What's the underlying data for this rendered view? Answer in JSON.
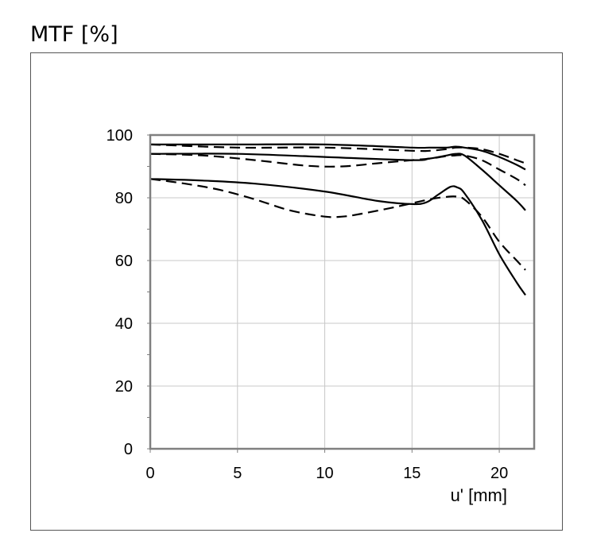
{
  "chart_data": {
    "type": "line",
    "title": "",
    "ylabel": "MTF [%]",
    "xlabel": "u' [mm]",
    "xlim": [
      0,
      22
    ],
    "ylim": [
      0,
      100
    ],
    "xticks": [
      0,
      5,
      10,
      15,
      20
    ],
    "yticks": [
      0,
      20,
      40,
      60,
      80,
      100
    ],
    "grid": true,
    "series": [
      {
        "style": "solid",
        "x": [
          0,
          5,
          10,
          15,
          16,
          17,
          17.5,
          18,
          19,
          20,
          21,
          21.5
        ],
        "y": [
          97,
          97,
          97,
          96,
          96,
          96,
          96.3,
          96,
          95,
          93,
          90.5,
          89
        ]
      },
      {
        "style": "dashed",
        "x": [
          0,
          5,
          10,
          15,
          16,
          17,
          17.5,
          18,
          19,
          20,
          21,
          21.5
        ],
        "y": [
          97,
          96,
          96,
          95,
          95,
          95.5,
          96,
          96,
          95.5,
          94,
          92,
          91
        ]
      },
      {
        "style": "solid",
        "x": [
          0,
          5,
          10,
          15,
          16,
          17,
          17.5,
          18,
          19,
          20,
          21,
          21.5
        ],
        "y": [
          94,
          94,
          93,
          92,
          92.5,
          93.5,
          94,
          93.5,
          89,
          84,
          79,
          76
        ]
      },
      {
        "style": "dashed",
        "x": [
          0,
          3,
          6,
          9,
          11,
          13,
          15,
          16,
          17,
          17.5,
          18,
          19,
          20,
          21,
          21.5
        ],
        "y": [
          94,
          93.5,
          92,
          90.2,
          90,
          91,
          92,
          92.5,
          93.3,
          93.5,
          93.5,
          92,
          89,
          86,
          84
        ]
      },
      {
        "style": "solid",
        "x": [
          0,
          3,
          6,
          10,
          13,
          15,
          15.8,
          16.5,
          17.2,
          17.6,
          18,
          19,
          20,
          21,
          21.5
        ],
        "y": [
          86,
          85.5,
          84.5,
          82,
          79,
          78,
          78.5,
          81,
          83.5,
          83.3,
          81.5,
          73,
          62,
          53,
          49
        ]
      },
      {
        "style": "dashed",
        "x": [
          0,
          2,
          4,
          6,
          8,
          10,
          11,
          12,
          14,
          16,
          17,
          17.5,
          18,
          19,
          20,
          21,
          21.5
        ],
        "y": [
          86,
          84.5,
          82.5,
          79.5,
          76,
          74,
          74,
          74.8,
          77,
          79.5,
          80.3,
          80.4,
          79.5,
          74,
          66,
          60,
          57
        ]
      }
    ]
  }
}
